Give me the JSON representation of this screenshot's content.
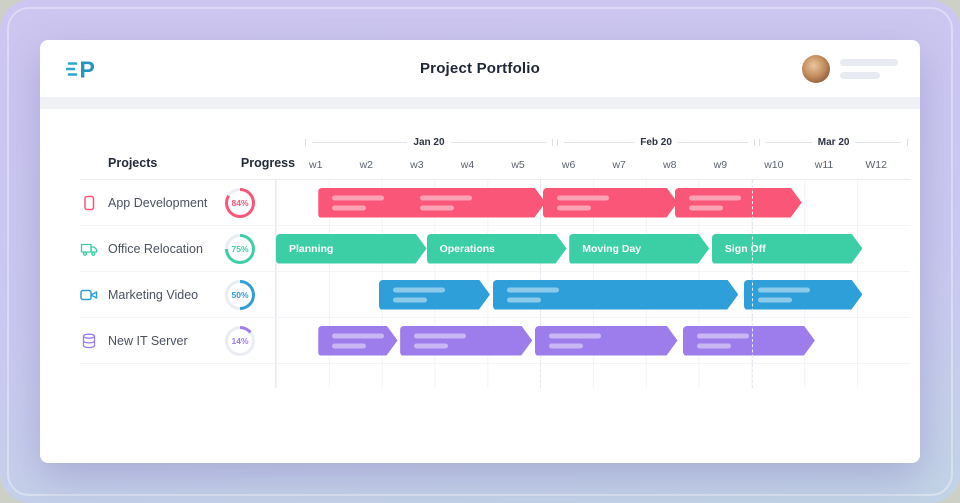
{
  "header": {
    "title": "Project Portfolio",
    "logo_letter": "P"
  },
  "columns": {
    "projects": "Projects",
    "progress": "Progress"
  },
  "chart_data": {
    "type": "gantt",
    "total_weeks": 12,
    "week_labels": [
      "w1",
      "w2",
      "w3",
      "w4",
      "w5",
      "w6",
      "w7",
      "w8",
      "w9",
      "w10",
      "w11",
      "W12"
    ],
    "months": [
      {
        "label": "Jan 20",
        "weeks": 5
      },
      {
        "label": "Feb 20",
        "weeks": 4
      },
      {
        "label": "Mar 20",
        "weeks": 3
      }
    ],
    "track_color": "#e9edf2",
    "rows": [
      {
        "project": "App Development",
        "icon": "app-window-icon",
        "progress": 84,
        "color": "#fa5678",
        "bars": [
          {
            "start_week": 1.8,
            "end_week": 6.1,
            "clusters": 2
          },
          {
            "start_week": 6.05,
            "end_week": 8.6,
            "clusters": 1
          },
          {
            "start_week": 8.55,
            "end_week": 10.95,
            "clusters": 1
          }
        ]
      },
      {
        "project": "Office Relocation",
        "icon": "truck-icon",
        "progress": 75,
        "color": "#3ccfa5",
        "bars": [
          {
            "start_week": 1.0,
            "end_week": 3.85,
            "label": "Planning"
          },
          {
            "start_week": 3.85,
            "end_week": 6.5,
            "label": "Operations"
          },
          {
            "start_week": 6.55,
            "end_week": 9.2,
            "label": "Moving Day"
          },
          {
            "start_week": 9.25,
            "end_week": 12.1,
            "label": "Sign Off"
          }
        ]
      },
      {
        "project": "Marketing Video",
        "icon": "video-camera-icon",
        "progress": 50,
        "color": "#2f9fd9",
        "bars": [
          {
            "start_week": 2.95,
            "end_week": 5.05,
            "clusters": 1
          },
          {
            "start_week": 5.1,
            "end_week": 9.75,
            "clusters": 1
          },
          {
            "start_week": 9.85,
            "end_week": 12.1,
            "clusters": 1
          }
        ]
      },
      {
        "project": "New IT Server",
        "icon": "database-icon",
        "progress": 14,
        "color": "#9d7cec",
        "bars": [
          {
            "start_week": 1.8,
            "end_week": 3.3,
            "clusters": 1
          },
          {
            "start_week": 3.35,
            "end_week": 5.85,
            "clusters": 1
          },
          {
            "start_week": 5.9,
            "end_week": 8.6,
            "clusters": 1
          },
          {
            "start_week": 8.7,
            "end_week": 11.2,
            "clusters": 1
          }
        ]
      }
    ]
  }
}
